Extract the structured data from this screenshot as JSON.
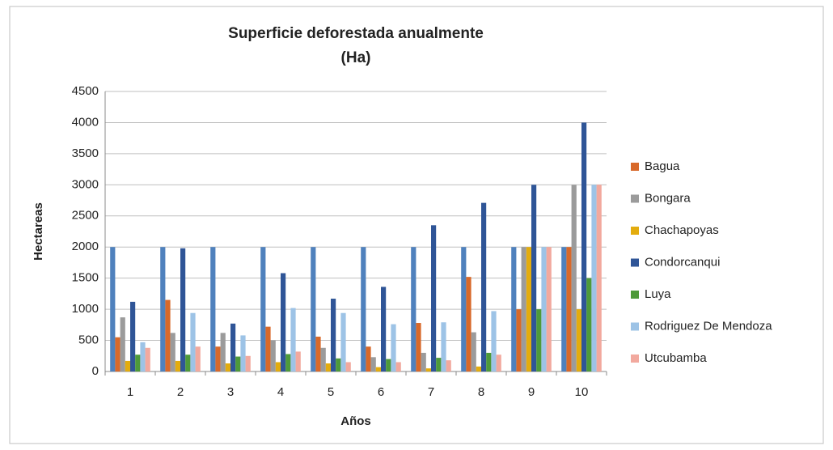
{
  "chart_data": {
    "type": "bar",
    "title": [
      "Superficie deforestada anualmente",
      "(Ha)"
    ],
    "x_label": "Años",
    "y_label": "Hectareas",
    "categories": [
      "1",
      "2",
      "3",
      "4",
      "5",
      "6",
      "7",
      "8",
      "9",
      "10"
    ],
    "series": [
      {
        "color": "#4f81bd",
        "values": [
          2000,
          2000,
          2000,
          2000,
          2000,
          2000,
          2000,
          2000,
          2000,
          2000
        ]
      },
      {
        "name": "Bagua",
        "color": "#d8692a",
        "values": [
          550,
          1150,
          400,
          720,
          560,
          400,
          780,
          1520,
          1000,
          2000
        ]
      },
      {
        "name": "Bongara",
        "color": "#9b9b9b",
        "values": [
          870,
          620,
          620,
          500,
          380,
          230,
          300,
          630,
          2000,
          3000
        ]
      },
      {
        "name": "Chachapoyas",
        "color": "#e3ac0e",
        "values": [
          170,
          170,
          130,
          150,
          130,
          70,
          50,
          80,
          2000,
          1000
        ]
      },
      {
        "name": "Condorcanqui",
        "color": "#2f5597",
        "values": [
          1120,
          1980,
          770,
          1580,
          1170,
          1360,
          2350,
          2710,
          3000,
          4000
        ]
      },
      {
        "name": "Luya",
        "color": "#4e9a3a",
        "values": [
          270,
          270,
          240,
          280,
          210,
          200,
          220,
          300,
          1000,
          1500
        ]
      },
      {
        "name": "Rodriguez De Mendoza",
        "color": "#9dc3e6",
        "values": [
          470,
          940,
          580,
          1020,
          940,
          760,
          790,
          970,
          2000,
          3000
        ]
      },
      {
        "name": "Utcubamba",
        "color": "#f2a99e",
        "values": [
          380,
          400,
          250,
          320,
          150,
          150,
          180,
          270,
          2000,
          3000
        ]
      }
    ],
    "ylim": [
      0,
      4500
    ],
    "yticks": [
      0,
      500,
      1000,
      1500,
      2000,
      2500,
      3000,
      3500,
      4000,
      4500
    ],
    "grid": true,
    "legend": "right"
  }
}
